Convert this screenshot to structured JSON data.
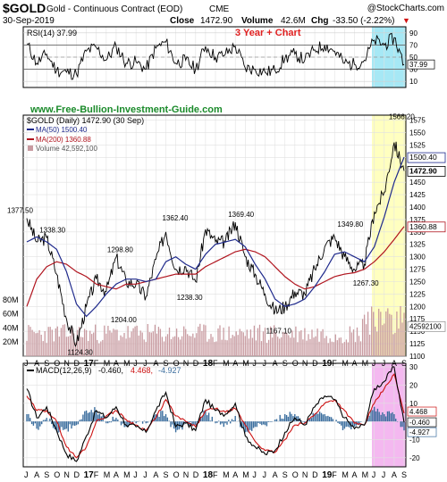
{
  "header": {
    "symbol": "$GOLD",
    "name": "Gold - Continuous Contract (EOD)",
    "exchange": "CME",
    "brand": "@StockCharts.com",
    "date": "30-Sep-2019",
    "close_label": "Close",
    "close_value": "1472.90",
    "volume_label": "Volume",
    "volume_value": "42.6M",
    "chg_label": "Chg",
    "chg_value": "-33.50 (-2.22%)",
    "chg_arrow": "▼"
  },
  "colors": {
    "price": "#000000",
    "ma50": "#1f2a8c",
    "ma200": "#b0141e",
    "volume": "#c89aa0",
    "rsi": "#000000",
    "macd": "#000000",
    "signal": "#cc1111",
    "hist": "#3b6e9e",
    "highlight_price": "#ffffc0",
    "highlight_rsi": "#a6e8f5",
    "highlight_macd": "#f4b8f0",
    "watermark_url": "#1a8a2a",
    "chart_title": "#e02020"
  },
  "watermark": {
    "url": "www.Free-Bullion-Investment-Guide.com",
    "chart_title": "3 Year + Chart"
  },
  "x_axis": {
    "labels": [
      "J",
      "A",
      "S",
      "O",
      "N",
      "D",
      "17",
      "F",
      "M",
      "A",
      "M",
      "J",
      "J",
      "A",
      "S",
      "O",
      "N",
      "D",
      "18",
      "F",
      "M",
      "A",
      "M",
      "J",
      "J",
      "A",
      "S",
      "O",
      "N",
      "D",
      "19",
      "F",
      "M",
      "A",
      "M",
      "J",
      "J",
      "A",
      "S"
    ]
  },
  "rsi_panel": {
    "legend": "RSI(14) 37.99",
    "last_label": "37.99",
    "ticks": [
      "90",
      "70",
      "50",
      "30",
      "10"
    ]
  },
  "price_panel": {
    "legend_title": "$GOLD (Daily) 1472.90 (30 Sep)",
    "legend_ma50": "MA(50) 1500.40",
    "legend_ma200": "MA(200) 1360.88",
    "legend_volume": "Volume 42,592,100",
    "ticks": [
      "1575",
      "1550",
      "1525",
      "1500",
      "1475",
      "1450",
      "1425",
      "1400",
      "1375",
      "1350",
      "1325",
      "1300",
      "1275",
      "1250",
      "1225",
      "1200",
      "1175",
      "1150",
      "1125",
      "1100"
    ],
    "vol_ticks": [
      "80M",
      "60M",
      "40M",
      "20M"
    ],
    "last_labels": {
      "ma50": "1500.40",
      "price": "1472.90",
      "ma200": "1360.88",
      "volume": "42592100"
    }
  },
  "macd_panel": {
    "legend_name": "MACD(12,26,9)",
    "legend_v1": "-0.460,",
    "legend_v2": "4.468,",
    "legend_v3": "-4.927",
    "ticks": [
      "30",
      "20",
      "10",
      "0",
      "-10",
      "-20"
    ],
    "last_labels": [
      "4.468",
      "-0.460",
      "-4.927"
    ]
  },
  "chart_data": {
    "type": "line",
    "title": "$GOLD (Daily) 1472.90 (30 Sep)",
    "date_range": [
      "2016-07",
      "2019-09-30"
    ],
    "annotations": [
      {
        "label": "1377.50",
        "value": 1377.5
      },
      {
        "label": "1338.30",
        "value": 1338.3
      },
      {
        "label": "1124.30",
        "value": 1124.3
      },
      {
        "label": "1298.80",
        "value": 1298.8
      },
      {
        "label": "1204.00",
        "value": 1204.0
      },
      {
        "label": "1362.40",
        "value": 1362.4
      },
      {
        "label": "1238.30",
        "value": 1238.3
      },
      {
        "label": "1369.40",
        "value": 1369.4
      },
      {
        "label": "1167.10",
        "value": 1167.1
      },
      {
        "label": "1349.80",
        "value": 1349.8
      },
      {
        "label": "1267.30",
        "value": 1267.3
      },
      {
        "label": "1566.20",
        "value": 1566.2
      }
    ],
    "price_ylim": [
      1100,
      1585
    ],
    "price_path": {
      "name": "$GOLD",
      "months": [
        "2016-07",
        "2016-08",
        "2016-09",
        "2016-10",
        "2016-11",
        "2016-12",
        "2017-01",
        "2017-02",
        "2017-03",
        "2017-04",
        "2017-05",
        "2017-06",
        "2017-07",
        "2017-08",
        "2017-09",
        "2017-10",
        "2017-11",
        "2017-12",
        "2018-01",
        "2018-02",
        "2018-03",
        "2018-04",
        "2018-05",
        "2018-06",
        "2018-07",
        "2018-08",
        "2018-09",
        "2018-10",
        "2018-11",
        "2018-12",
        "2019-01",
        "2019-02",
        "2019-03",
        "2019-04",
        "2019-05",
        "2019-06",
        "2019-07",
        "2019-08",
        "2019-09"
      ],
      "values": [
        1377.5,
        1330,
        1338.3,
        1265,
        1175,
        1124.3,
        1200,
        1255,
        1230,
        1298.8,
        1250,
        1245,
        1220,
        1295,
        1350,
        1275,
        1280,
        1250,
        1355,
        1330,
        1330,
        1369.4,
        1300,
        1265,
        1225,
        1190,
        1200,
        1230,
        1225,
        1275,
        1320,
        1340,
        1300,
        1275,
        1285,
        1390,
        1430,
        1530,
        1472.9
      ]
    },
    "ma50": {
      "name": "MA(50)",
      "values": [
        1330,
        1340,
        1330,
        1315,
        1270,
        1205,
        1180,
        1200,
        1225,
        1245,
        1255,
        1255,
        1250,
        1255,
        1290,
        1300,
        1285,
        1275,
        1305,
        1325,
        1330,
        1335,
        1320,
        1285,
        1255,
        1215,
        1200,
        1205,
        1215,
        1240,
        1270,
        1305,
        1310,
        1300,
        1290,
        1320,
        1380,
        1450,
        1500.4
      ]
    },
    "ma200": {
      "name": "MA(200)",
      "values": [
        1200,
        1255,
        1280,
        1290,
        1285,
        1270,
        1260,
        1245,
        1240,
        1235,
        1245,
        1245,
        1250,
        1255,
        1260,
        1265,
        1265,
        1265,
        1280,
        1290,
        1300,
        1310,
        1315,
        1310,
        1300,
        1280,
        1260,
        1245,
        1235,
        1240,
        1250,
        1260,
        1265,
        1268,
        1275,
        1290,
        1310,
        1335,
        1360.88
      ]
    },
    "rsi": {
      "name": "RSI(14)",
      "ylim": [
        0,
        100
      ],
      "values": [
        72,
        40,
        55,
        28,
        25,
        22,
        60,
        66,
        45,
        68,
        40,
        42,
        30,
        65,
        75,
        40,
        45,
        30,
        68,
        50,
        55,
        68,
        32,
        30,
        25,
        28,
        48,
        55,
        45,
        62,
        70,
        60,
        40,
        38,
        45,
        78,
        70,
        82,
        37.99
      ]
    },
    "macd": {
      "name": "MACD(12,26,9)",
      "ylim": [
        -25,
        32
      ],
      "macd_values": [
        18,
        2,
        8,
        -5,
        -18,
        -22,
        -8,
        6,
        2,
        8,
        -2,
        -3,
        -6,
        6,
        16,
        -3,
        -1,
        -5,
        12,
        6,
        4,
        10,
        -8,
        -14,
        -18,
        -16,
        -6,
        2,
        -2,
        8,
        14,
        12,
        2,
        -4,
        -2,
        18,
        22,
        30,
        -0.46
      ],
      "signal_values": [
        14,
        6,
        6,
        0,
        -14,
        -20,
        -14,
        0,
        3,
        6,
        1,
        -2,
        -5,
        2,
        12,
        3,
        0,
        -3,
        6,
        7,
        5,
        7,
        -2,
        -11,
        -16,
        -17,
        -10,
        -2,
        -1,
        4,
        10,
        12,
        6,
        -1,
        -2,
        10,
        18,
        26,
        4.468
      ],
      "hist_last": -4.927
    },
    "volume": {
      "name": "Volume",
      "ylim_millions": [
        0,
        100
      ],
      "last": 42592100
    }
  }
}
